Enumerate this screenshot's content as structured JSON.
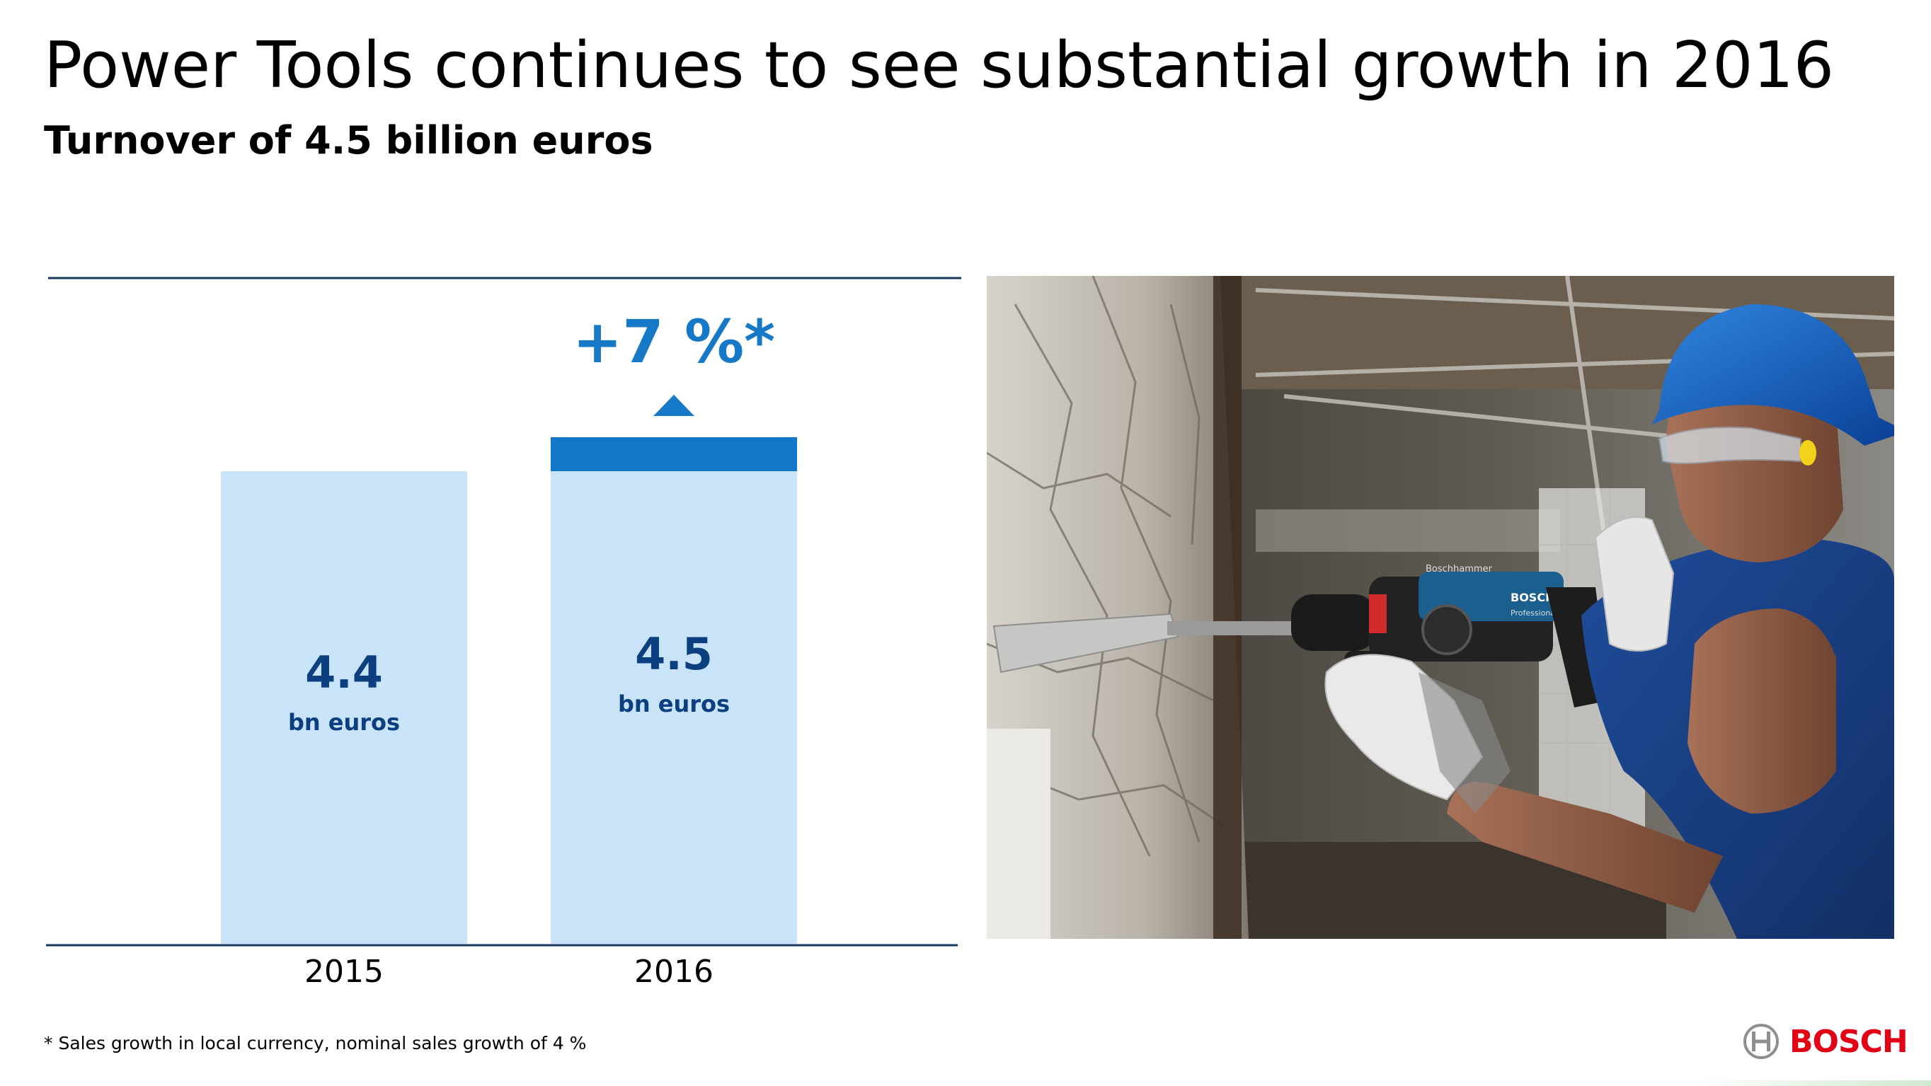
{
  "page": {
    "title": "Power Tools continues to see substantial growth in 2016",
    "subtitle": "Turnover of 4.5 billion euros",
    "footnote": "* Sales growth in local currency, nominal sales growth of 4 %",
    "brand": "BOSCH"
  },
  "colors": {
    "bar_light": "#c9e4f9",
    "bar_increment": "#1477c7",
    "text_dark_blue": "#0b3f7f",
    "growth_blue": "#1679c8",
    "axis_line": "#15385f",
    "brand_red": "#e20015"
  },
  "chart_data": {
    "type": "bar",
    "categories": [
      "2015",
      "2016"
    ],
    "values": [
      4.4,
      4.5
    ],
    "unit": "bn euros",
    "value_labels": [
      "4.4",
      "4.5"
    ],
    "highlight": {
      "category": "2016",
      "label": "+7 %*"
    },
    "xlabel": "",
    "ylabel": "",
    "grid": false,
    "legend": "none"
  },
  "photo": {
    "label": "Bosch rotary hammer in use",
    "tool_brand_text": "BOSCH",
    "tool_model_text": "Boschhammer",
    "tool_sub_text": "Professional"
  }
}
